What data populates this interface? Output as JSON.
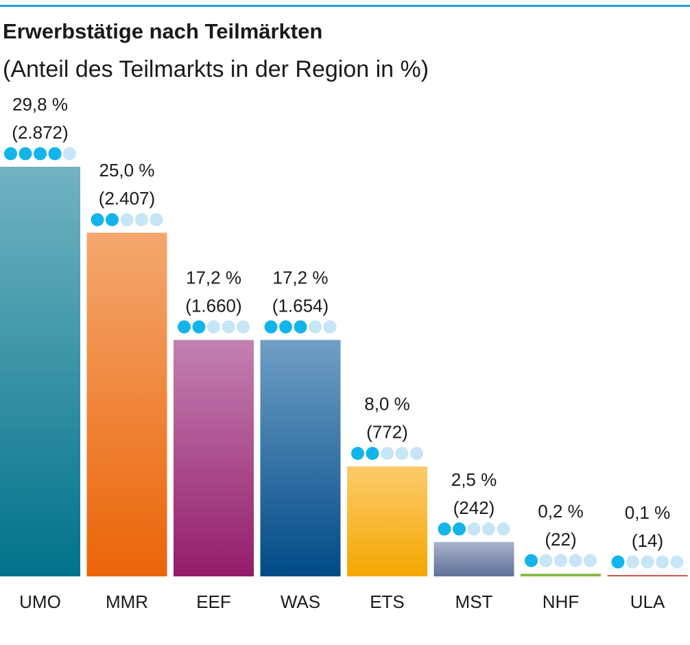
{
  "chart_data": {
    "type": "bar",
    "title": "Erwerbstätige nach Teilmärkten",
    "subtitle": "(Anteil des Teilmarkts in der Region in %)",
    "categories": [
      "UMO",
      "MMR",
      "EEF",
      "WAS",
      "ETS",
      "MST",
      "NHF",
      "ULA"
    ],
    "values": [
      29.8,
      25.0,
      17.2,
      17.2,
      8.0,
      2.5,
      0.2,
      0.1
    ],
    "value_labels": [
      "29,8 %",
      "25,0 %",
      "17,2 %",
      "17,2 %",
      "8,0 %",
      "2,5 %",
      "0,2 %",
      "0,1 %"
    ],
    "count_labels": [
      "(2.872)",
      "(2.407)",
      "(1.660)",
      "(1.654)",
      "(772)",
      "(242)",
      "(22)",
      "(14)"
    ],
    "ratings": [
      4,
      2,
      2,
      3,
      2,
      2,
      1,
      1
    ],
    "rating_max": 5,
    "colors_top": [
      "#72b3c2",
      "#f4a76e",
      "#c381b2",
      "#6f9fc5",
      "#fccb6b",
      "#a9b3cb",
      "#9cc75a",
      "#d46a5e"
    ],
    "colors_bottom": [
      "#00728a",
      "#eb6408",
      "#941c69",
      "#004a87",
      "#f5a700",
      "#5f7099",
      "#7ab03c",
      "#b8473c"
    ],
    "dot_color": "#12b4e9",
    "dot_empty_color": "#c6e5f6"
  }
}
